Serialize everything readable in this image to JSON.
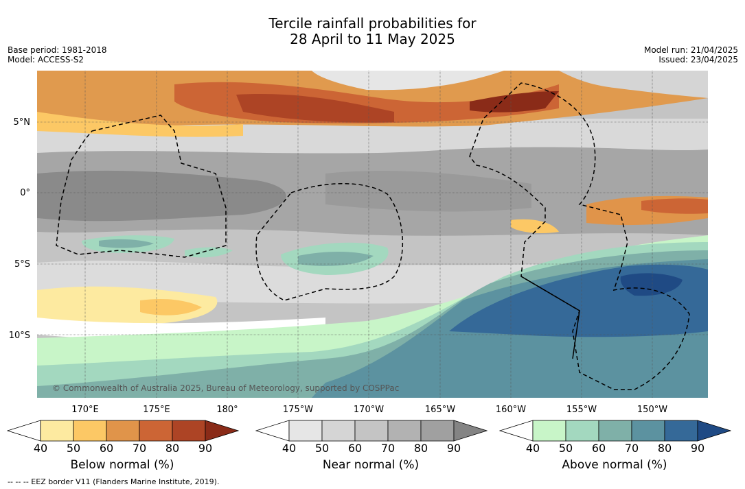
{
  "title_line1": "Tercile rainfall probabilities for",
  "title_line2": "28 April to 11 May 2025",
  "base_period": "Base period: 1981-2018",
  "model": "Model: ACCESS-S2",
  "model_run": "Model run: 21/04/2025",
  "issued": "Issued: 23/04/2025",
  "copyright": "© Commonwealth of Australia 2025, Bureau of Meteorology, supported by COSPPac",
  "eez_note": "--  --  -- EEZ border V11 (Flanders Marine Institute, 2019).",
  "lat_labels": [
    "5°N",
    "0°",
    "5°S",
    "10°S"
  ],
  "lon_labels": [
    "170°E",
    "175°E",
    "180°",
    "175°W",
    "170°W",
    "165°W",
    "160°W",
    "155°W",
    "150°W"
  ],
  "colorbars": [
    {
      "title": "Below normal (%)",
      "ticks": [
        "40",
        "50",
        "60",
        "70",
        "80",
        "90"
      ],
      "colors": [
        "#ffffff",
        "#fdeaa0",
        "#fcc865",
        "#e0944a",
        "#cc6535",
        "#ad4425",
        "#8a2b18"
      ]
    },
    {
      "title": "Near normal (%)",
      "ticks": [
        "40",
        "50",
        "60",
        "70",
        "80",
        "90"
      ],
      "colors": [
        "#ffffff",
        "#e6e6e6",
        "#d5d5d5",
        "#c4c4c4",
        "#b2b2b2",
        "#a0a0a0",
        "#848484"
      ]
    },
    {
      "title": "Above normal (%)",
      "ticks": [
        "40",
        "50",
        "60",
        "70",
        "80",
        "90"
      ],
      "colors": [
        "#ffffff",
        "#c8f5c8",
        "#a3d8bf",
        "#7fb0a8",
        "#5c92a0",
        "#356998",
        "#1f4a84"
      ]
    }
  ]
}
